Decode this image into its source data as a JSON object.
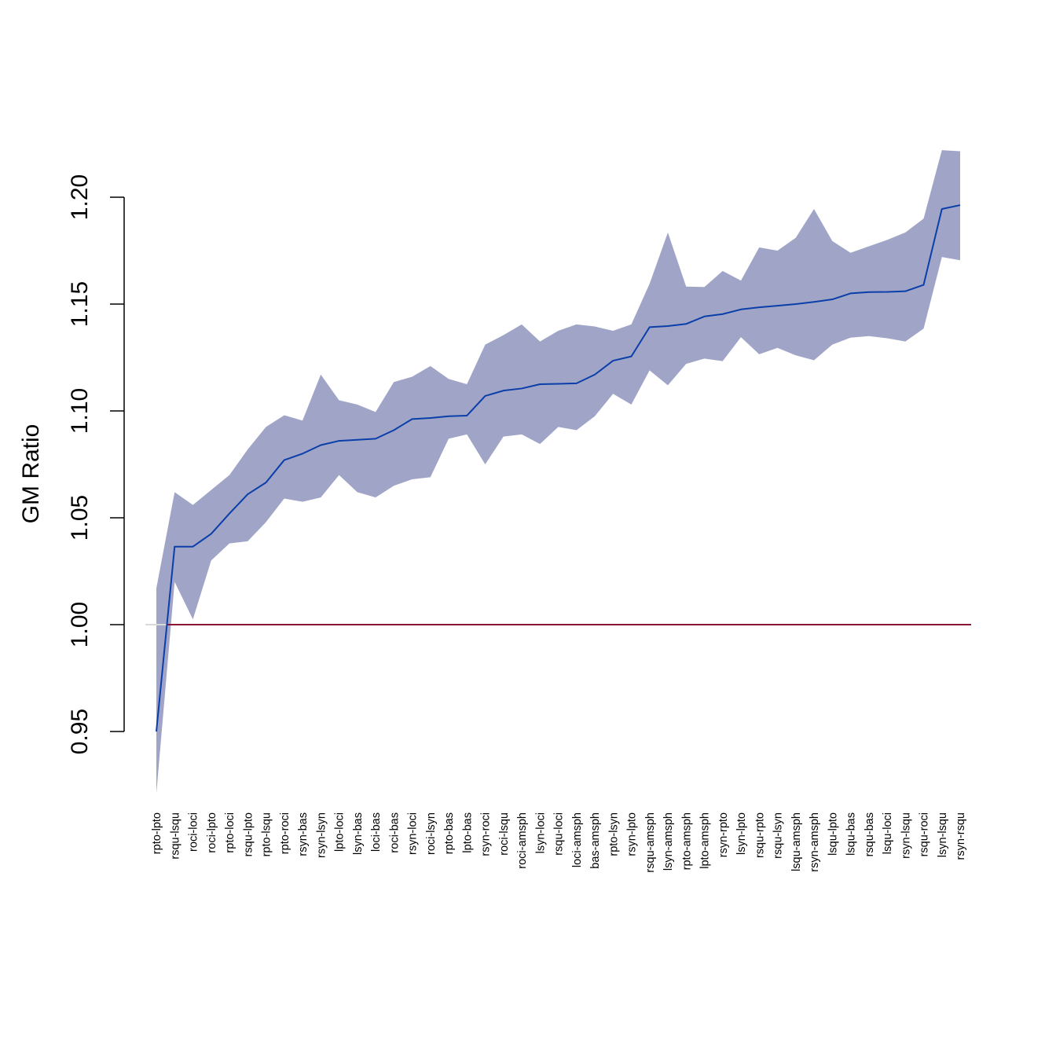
{
  "chart_data": {
    "type": "line",
    "title": "",
    "xlabel": "",
    "ylabel": "GM Ratio",
    "ylim": [
      0.95,
      1.2
    ],
    "yticks": [
      "0.95",
      "1.00",
      "1.05",
      "1.10",
      "1.15",
      "1.20"
    ],
    "reference_line": 1.0,
    "grid": false,
    "legend": "none",
    "colors": {
      "line": "#0a3ea8",
      "band": "#a0a5c8",
      "reference": "#8b1535",
      "reference_left": "#d9d9d9",
      "axis": "#000000"
    },
    "categories": [
      "rpto-lpto",
      "rsqu-lsqu",
      "roci-loci",
      "roci-lpto",
      "rpto-loci",
      "rsqu-lpto",
      "rpto-lsqu",
      "rpto-roci",
      "rsyn-bas",
      "rsyn-lsyn",
      "lpto-loci",
      "lsyn-bas",
      "loci-bas",
      "roci-bas",
      "rsyn-loci",
      "roci-lsyn",
      "rpto-bas",
      "lpto-bas",
      "rsyn-roci",
      "roci-lsqu",
      "roci-amsph",
      "lsyn-loci",
      "rsqu-loci",
      "loci-amsph",
      "bas-amsph",
      "rpto-lsyn",
      "rsyn-lpto",
      "rsqu-amsph",
      "lsyn-amsph",
      "rpto-amsph",
      "lpto-amsph",
      "rsyn-rpto",
      "lsyn-lpto",
      "rsqu-rpto",
      "rsqu-lsyn",
      "lsqu-amsph",
      "rsyn-amsph",
      "lsqu-lpto",
      "lsqu-bas",
      "rsqu-bas",
      "lsqu-loci",
      "rsyn-lsqu",
      "rsqu-roci",
      "lsyn-lsqu",
      "rsyn-rsqu"
    ],
    "series": [
      {
        "values": [
          0.95,
          1.0365,
          1.0365,
          1.0425,
          1.052,
          1.061,
          1.0665,
          1.077,
          1.08,
          1.084,
          1.086,
          1.0865,
          1.087,
          1.091,
          1.0962,
          1.0967,
          1.0975,
          1.0978,
          1.107,
          1.1095,
          1.1105,
          1.1125,
          1.1127,
          1.1129,
          1.117,
          1.1235,
          1.1255,
          1.1392,
          1.1397,
          1.1407,
          1.1442,
          1.1453,
          1.1475,
          1.1485,
          1.1492,
          1.15,
          1.151,
          1.1522,
          1.155,
          1.1556,
          1.1557,
          1.156,
          1.159,
          1.1945,
          1.1963
        ]
      }
    ],
    "band": {
      "upper": [
        1.017,
        1.062,
        1.056,
        1.063,
        1.07,
        1.082,
        1.0925,
        1.098,
        1.0955,
        1.117,
        1.105,
        1.103,
        1.0995,
        1.1135,
        1.116,
        1.121,
        1.115,
        1.1125,
        1.131,
        1.1355,
        1.1405,
        1.1325,
        1.1375,
        1.1405,
        1.1395,
        1.1375,
        1.1405,
        1.1595,
        1.1835,
        1.1582,
        1.158,
        1.1655,
        1.161,
        1.1765,
        1.175,
        1.181,
        1.1945,
        1.1795,
        1.174,
        1.177,
        1.18,
        1.1835,
        1.19,
        1.222,
        1.2215
      ],
      "lower": [
        0.921,
        1.02,
        1.0025,
        1.03,
        1.038,
        1.039,
        1.048,
        1.059,
        1.0575,
        1.0595,
        1.07,
        1.062,
        1.0595,
        1.065,
        1.068,
        1.069,
        1.087,
        1.089,
        1.075,
        1.088,
        1.089,
        1.0845,
        1.0925,
        1.091,
        1.0975,
        1.108,
        1.103,
        1.119,
        1.112,
        1.122,
        1.1245,
        1.1233,
        1.1345,
        1.1265,
        1.1295,
        1.126,
        1.1237,
        1.131,
        1.1343,
        1.135,
        1.134,
        1.1325,
        1.1385,
        1.172,
        1.1705
      ]
    }
  }
}
